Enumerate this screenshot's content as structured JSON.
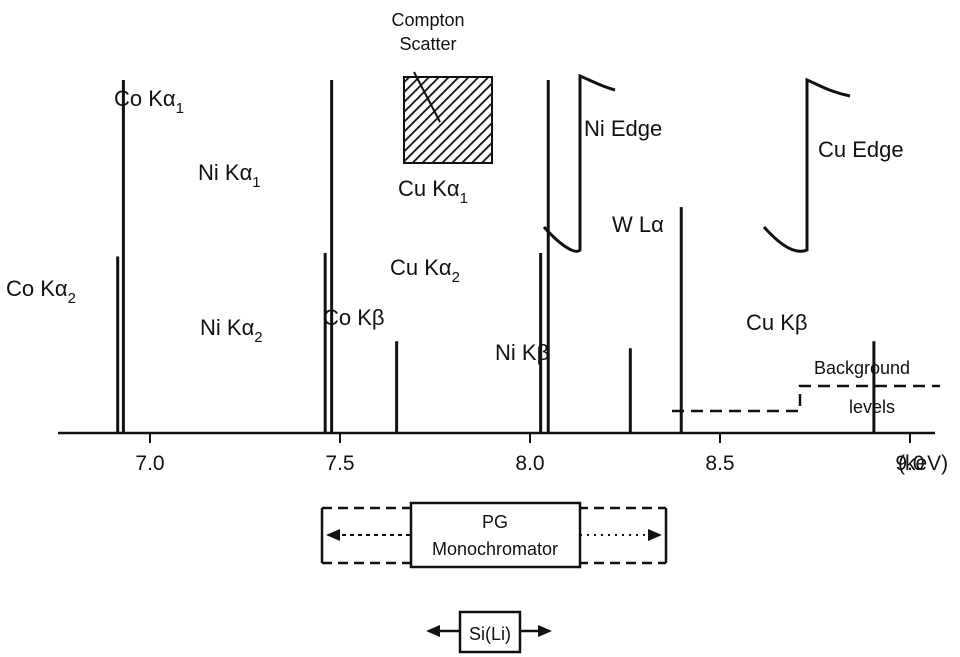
{
  "diagram": {
    "x_axis": {
      "unit": "(keV)",
      "tick_labels": [
        "7.0",
        "7.5",
        "8.0",
        "8.5",
        "9.0"
      ]
    },
    "peaks": [
      {
        "label": "Co K",
        "greek": "α",
        "sub": "1",
        "x": 6.93,
        "h": 1.0
      },
      {
        "label": "Co K",
        "greek": "α",
        "sub": "2",
        "x": 6.915,
        "h": 0.5
      },
      {
        "label": "Ni K",
        "greek": "α",
        "sub": "1",
        "x": 7.478,
        "h": 1.0
      },
      {
        "label": "Ni K",
        "greek": "α",
        "sub": "2",
        "x": 7.461,
        "h": 0.51
      },
      {
        "label": "Co K",
        "greek": "β",
        "sub": "",
        "x": 7.649,
        "h": 0.26
      },
      {
        "label": "Cu K",
        "greek": "α",
        "sub": "1",
        "x": 8.048,
        "h": 1.0
      },
      {
        "label": "Cu K",
        "greek": "α",
        "sub": "2",
        "x": 8.028,
        "h": 0.51
      },
      {
        "label": "Ni K",
        "greek": "β",
        "sub": "",
        "x": 8.264,
        "h": 0.24
      },
      {
        "label": "W L",
        "greek": "α",
        "sub": "",
        "x": 8.398,
        "h": 0.64
      },
      {
        "label": "Cu K",
        "greek": "β",
        "sub": "",
        "x": 8.905,
        "h": 0.26
      }
    ],
    "edges": [
      {
        "label": "Ni Edge",
        "x": 8.333
      },
      {
        "label": "Cu Edge",
        "x": 8.979
      }
    ],
    "compton": {
      "line1": "Compton",
      "line2": "Scatter",
      "x_start": 7.8,
      "x_end": 8.048
    },
    "background": {
      "line1": "Background",
      "line2": "levels"
    },
    "pg_box": {
      "line1": "PG",
      "line2": "Monochromator"
    },
    "si_box": {
      "label": "Si(Li)"
    }
  }
}
